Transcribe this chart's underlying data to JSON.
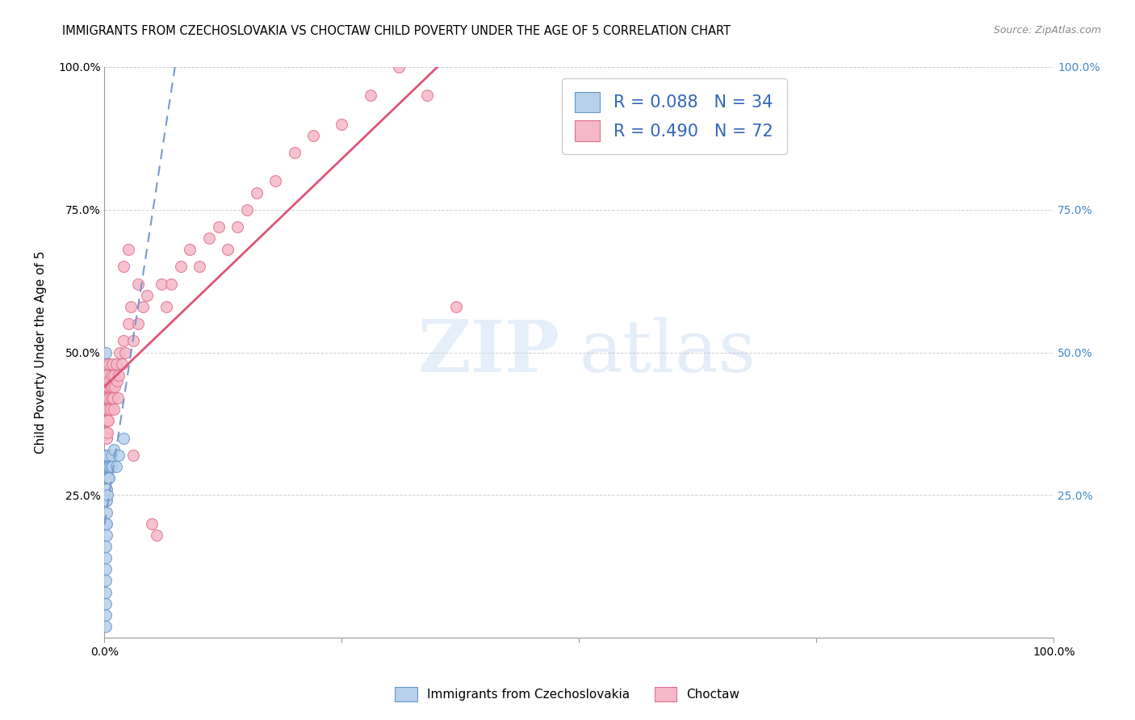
{
  "title": "IMMIGRANTS FROM CZECHOSLOVAKIA VS CHOCTAW CHILD POVERTY UNDER THE AGE OF 5 CORRELATION CHART",
  "source": "Source: ZipAtlas.com",
  "ylabel": "Child Poverty Under the Age of 5",
  "blue_label": "Immigrants from Czechoslovakia",
  "pink_label": "Choctaw",
  "blue_R": 0.088,
  "blue_N": 34,
  "pink_R": 0.49,
  "pink_N": 72,
  "blue_face": "#b8d0ea",
  "blue_edge": "#6699cc",
  "pink_face": "#f5b8c8",
  "pink_edge": "#e07090",
  "blue_line_color": "#7799cc",
  "pink_line_color": "#dd5577",
  "right_tick_color": "#4488cc",
  "legend_text_color": "#3366bb",
  "blue_x": [
    0.001,
    0.001,
    0.001,
    0.001,
    0.001,
    0.001,
    0.001,
    0.001,
    0.001,
    0.001,
    0.002,
    0.002,
    0.002,
    0.002,
    0.002,
    0.002,
    0.002,
    0.002,
    0.003,
    0.003,
    0.003,
    0.003,
    0.004,
    0.004,
    0.005,
    0.005,
    0.006,
    0.007,
    0.008,
    0.01,
    0.012,
    0.015,
    0.02,
    0.001
  ],
  "blue_y": [
    0.02,
    0.04,
    0.06,
    0.08,
    0.1,
    0.12,
    0.14,
    0.16,
    0.2,
    0.24,
    0.18,
    0.22,
    0.26,
    0.28,
    0.3,
    0.32,
    0.24,
    0.2,
    0.25,
    0.28,
    0.3,
    0.32,
    0.28,
    0.3,
    0.28,
    0.3,
    0.3,
    0.32,
    0.3,
    0.33,
    0.3,
    0.32,
    0.35,
    0.5
  ],
  "pink_x": [
    0.001,
    0.001,
    0.001,
    0.001,
    0.002,
    0.002,
    0.002,
    0.002,
    0.002,
    0.002,
    0.003,
    0.003,
    0.003,
    0.003,
    0.003,
    0.003,
    0.004,
    0.004,
    0.004,
    0.005,
    0.005,
    0.005,
    0.006,
    0.006,
    0.007,
    0.007,
    0.008,
    0.008,
    0.009,
    0.01,
    0.01,
    0.011,
    0.012,
    0.013,
    0.014,
    0.015,
    0.016,
    0.018,
    0.02,
    0.022,
    0.025,
    0.028,
    0.03,
    0.035,
    0.04,
    0.045,
    0.05,
    0.055,
    0.06,
    0.065,
    0.07,
    0.08,
    0.09,
    0.1,
    0.11,
    0.12,
    0.13,
    0.14,
    0.15,
    0.16,
    0.18,
    0.2,
    0.22,
    0.25,
    0.28,
    0.31,
    0.34,
    0.37,
    0.025,
    0.035,
    0.02,
    0.03
  ],
  "pink_y": [
    0.38,
    0.42,
    0.32,
    0.36,
    0.45,
    0.48,
    0.38,
    0.42,
    0.35,
    0.4,
    0.44,
    0.4,
    0.36,
    0.42,
    0.46,
    0.38,
    0.44,
    0.4,
    0.38,
    0.45,
    0.42,
    0.48,
    0.44,
    0.4,
    0.46,
    0.42,
    0.44,
    0.48,
    0.42,
    0.46,
    0.4,
    0.44,
    0.48,
    0.45,
    0.42,
    0.46,
    0.5,
    0.48,
    0.52,
    0.5,
    0.55,
    0.58,
    0.52,
    0.55,
    0.58,
    0.6,
    0.2,
    0.18,
    0.62,
    0.58,
    0.62,
    0.65,
    0.68,
    0.65,
    0.7,
    0.72,
    0.68,
    0.72,
    0.75,
    0.78,
    0.8,
    0.85,
    0.88,
    0.9,
    0.95,
    1.0,
    0.95,
    0.58,
    0.68,
    0.62,
    0.65,
    0.32
  ],
  "xlim": [
    0.0,
    1.0
  ],
  "ylim": [
    0.0,
    1.0
  ],
  "xticks": [
    0.0,
    0.25,
    0.5,
    0.75,
    1.0
  ],
  "yticks": [
    0.0,
    0.25,
    0.5,
    0.75,
    1.0
  ],
  "xticklabels": [
    "0.0%",
    "",
    "",
    "",
    "100.0%"
  ],
  "yticklabels": [
    "",
    "25.0%",
    "50.0%",
    "75.0%",
    "100.0%"
  ],
  "right_yticklabels": [
    "",
    "25.0%",
    "50.0%",
    "75.0%",
    "100.0%"
  ]
}
